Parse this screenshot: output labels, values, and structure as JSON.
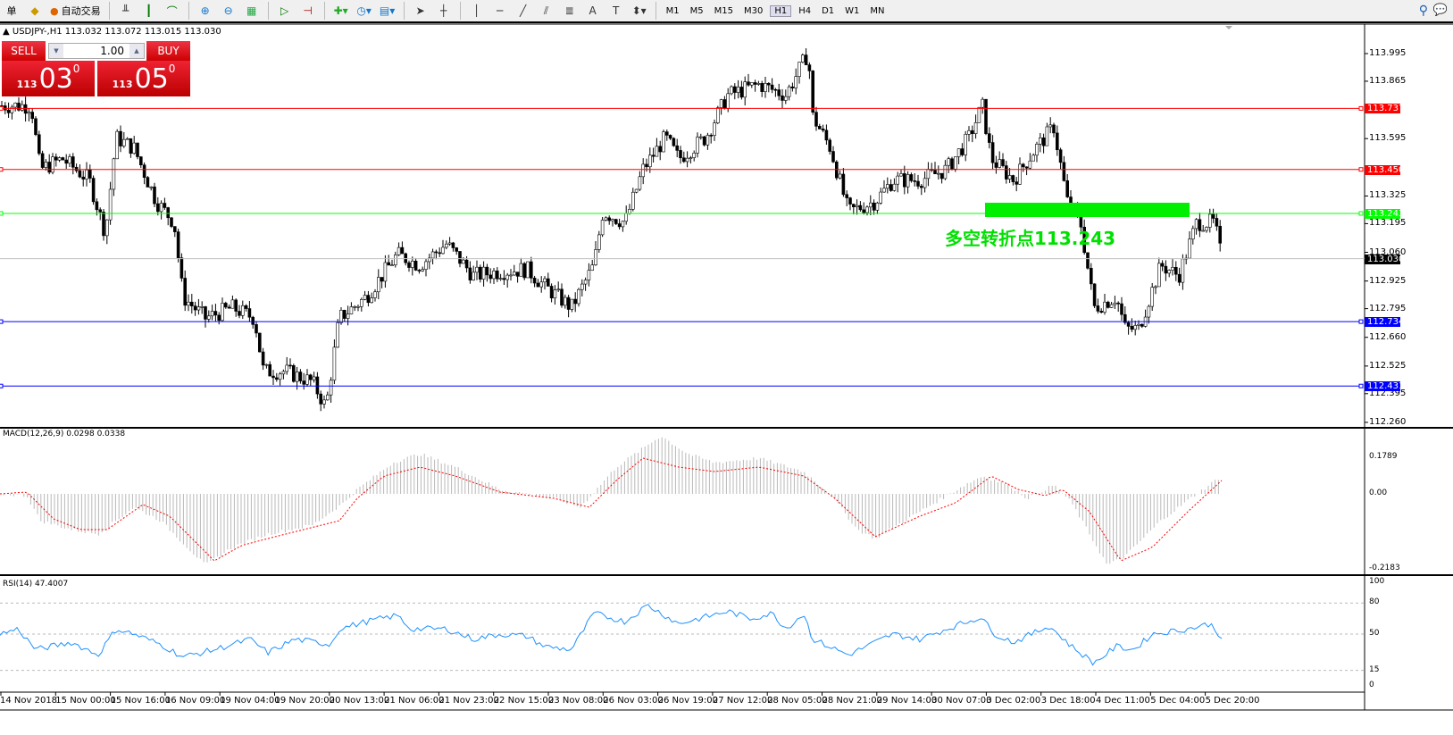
{
  "toolbar": {
    "orders_label": "单",
    "autotrade_label": "自动交易",
    "timeframes": [
      "M1",
      "M5",
      "M15",
      "M30",
      "H1",
      "H4",
      "D1",
      "W1",
      "MN"
    ],
    "active_timeframe": "H1"
  },
  "chart": {
    "symbol_line": "USDJPY-,H1  113.032 113.072 113.015 113.030",
    "trade": {
      "sell": "SELL",
      "buy": "BUY",
      "lot": "1.00",
      "sell_small": "113",
      "sell_large": "03",
      "sell_pip": "0",
      "buy_small": "113",
      "buy_large": "05",
      "buy_pip": "0"
    },
    "price_ticks": [
      "113.995",
      "113.865",
      "113.595",
      "113.325",
      "113.195",
      "113.060",
      "112.925",
      "112.795",
      "112.660",
      "112.525",
      "112.395",
      "112.260"
    ],
    "levels": [
      {
        "price": "113.737",
        "color": "#ff0000"
      },
      {
        "price": "113.450",
        "color": "#ff0000"
      },
      {
        "price": "113.243",
        "color": "#00ff00"
      },
      {
        "price": "112.734",
        "color": "#0000ff"
      },
      {
        "price": "112.431",
        "color": "#0000ff"
      }
    ],
    "current_price": "113.030",
    "annotation": "多空转折点113.243",
    "annotation_color": "#00ee00"
  },
  "macd": {
    "title": "MACD(12,26,9) 0.0298 0.0338",
    "ticks": [
      "0.1789",
      "0.00",
      "-0.2183"
    ]
  },
  "rsi": {
    "title": "RSI(14) 47.4007",
    "ticks": [
      "100",
      "80",
      "50",
      "15",
      "0"
    ]
  },
  "time_axis": [
    "14 Nov 2018",
    "15 Nov 00:00",
    "15 Nov 16:00",
    "16 Nov 09:00",
    "19 Nov 04:00",
    "19 Nov 20:00",
    "20 Nov 13:00",
    "21 Nov 06:00",
    "21 Nov 23:00",
    "22 Nov 15:00",
    "23 Nov 08:00",
    "26 Nov 03:00",
    "26 Nov 19:00",
    "27 Nov 12:00",
    "28 Nov 05:00",
    "28 Nov 21:00",
    "29 Nov 14:00",
    "30 Nov 07:00",
    "3 Dec 02:00",
    "3 Dec 18:00",
    "4 Dec 11:00",
    "5 Dec 04:00",
    "5 Dec 20:00"
  ]
}
